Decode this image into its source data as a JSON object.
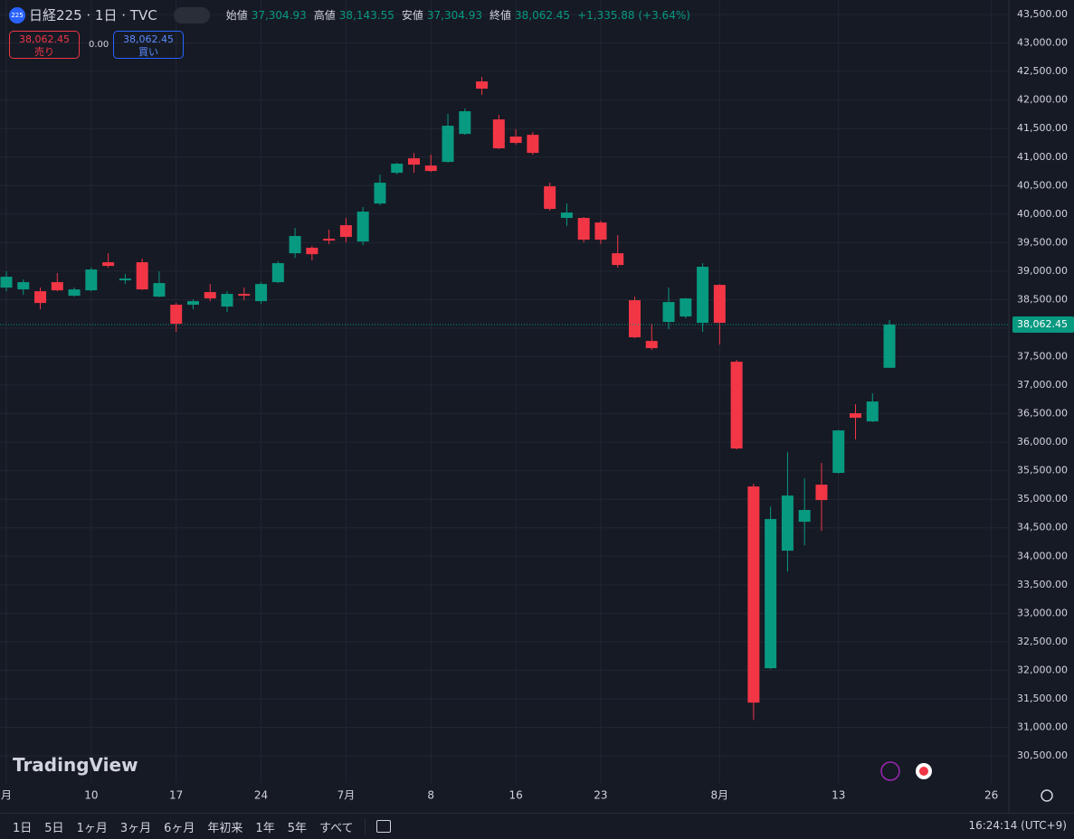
{
  "header": {
    "symbol_badge": "225",
    "symbol": "日経225 · 1日 · TVC",
    "open_label": "始値",
    "open_value": "37,304.93",
    "high_label": "高値",
    "high_value": "38,143.55",
    "low_label": "安値",
    "low_value": "37,304.93",
    "close_label": "終値",
    "close_value": "38,062.45",
    "change": "+1,335.88 (+3.64%)"
  },
  "trade": {
    "sell_price": "38,062.45",
    "sell_label": "売り",
    "spread": "0.00",
    "buy_price": "38,062.45",
    "buy_label": "買い"
  },
  "logo": "TradingView",
  "toolbar": {
    "ranges": [
      "1日",
      "5日",
      "1ヶ月",
      "3ヶ月",
      "6ヶ月",
      "年初来",
      "1年",
      "5年",
      "すべて"
    ],
    "clock": "16:24:14 (UTC+9)"
  },
  "chart_data": {
    "type": "candlestick",
    "categories": [
      "月",
      null,
      null,
      null,
      null,
      "10",
      null,
      null,
      null,
      null,
      "17",
      null,
      null,
      null,
      null,
      "24",
      null,
      null,
      null,
      null,
      "7月",
      null,
      null,
      null,
      null,
      "8",
      null,
      null,
      null,
      null,
      "16",
      null,
      null,
      null,
      null,
      "23",
      null,
      null,
      null,
      null,
      null,
      null,
      "8月",
      null,
      null,
      null,
      null,
      null,
      null,
      "13",
      null,
      null,
      null,
      null,
      null,
      null,
      null,
      null,
      "26"
    ],
    "open": [
      38712,
      38680,
      38648,
      38807,
      38569,
      38664,
      39156,
      38839,
      39156,
      38553,
      38411,
      38411,
      38633,
      38379,
      38601,
      38474,
      38807,
      39314,
      39410,
      39568,
      39806,
      39520,
      40186,
      40725,
      40979,
      40852,
      40916,
      41407,
      42327,
      41661,
      41360,
      41391,
      40488,
      39933,
      39933,
      39853,
      39314,
      38490,
      37776,
      38109,
      38205,
      38094,
      38759,
      37412,
      35224,
      32037,
      34098,
      34605,
      35256,
      35462,
      36508,
      36365,
      37304.93,
      null,
      null,
      null,
      null,
      null,
      null
    ],
    "high": [
      38997,
      38855,
      38712,
      38966,
      38712,
      39061,
      39314,
      38950,
      39219,
      38997,
      38442,
      38506,
      38775,
      38648,
      38712,
      38807,
      39172,
      39758,
      39441,
      39727,
      39933,
      40123,
      40694,
      40900,
      41074,
      41043,
      41756,
      41851,
      42406,
      41740,
      41487,
      41439,
      40551,
      40186,
      39949,
      39885,
      39631,
      38553,
      38078,
      38712,
      38530,
      39140,
      38770,
      37444,
      35271,
      34875,
      35826,
      35366,
      35636,
      36215,
      36667,
      36857,
      38143.55,
      null,
      null,
      null,
      null,
      null,
      null
    ],
    "low": [
      38648,
      38585,
      38331,
      38648,
      38553,
      38648,
      39061,
      38775,
      38670,
      38545,
      37935,
      38331,
      38474,
      38284,
      38490,
      38426,
      38791,
      39235,
      39188,
      39473,
      39505,
      39457,
      40155,
      40694,
      40725,
      40741,
      40900,
      41391,
      42089,
      41140,
      41217,
      41043,
      40060,
      39790,
      39505,
      39473,
      39061,
      37824,
      37618,
      37983,
      38173,
      37935,
      37713,
      35874,
      31133,
      32021,
      33733,
      34193,
      34447,
      35450,
      36048,
      36355,
      37304.93,
      null,
      null,
      null,
      null,
      null,
      null
    ],
    "close": [
      38902,
      38807,
      38442,
      38664,
      38680,
      39029,
      39092,
      38870,
      38680,
      38791,
      38078,
      38474,
      38522,
      38601,
      38569,
      38775,
      39140,
      39616,
      39298,
      39536,
      39600,
      40044,
      40551,
      40884,
      40868,
      40757,
      41550,
      41804,
      42200,
      41154,
      41249,
      41074,
      40091,
      40028,
      39552,
      39552,
      39108,
      37840,
      37650,
      38458,
      38522,
      39077,
      38094,
      35890,
      31434,
      34653,
      35065,
      34812,
      34986,
      36207,
      36429,
      36714,
      38062.45,
      null,
      null,
      null,
      null,
      null,
      null
    ],
    "last_price_label": "38,062.45",
    "up_color": "#089981",
    "down_color": "#f23645",
    "grid": true,
    "ylim": [
      30025,
      43755
    ],
    "yticks": [
      {
        "value": 30500,
        "label": "30,500.00"
      },
      {
        "value": 31000,
        "label": "31,000.00"
      },
      {
        "value": 31500,
        "label": "31,500.00"
      },
      {
        "value": 32000,
        "label": "32,000.00"
      },
      {
        "value": 32500,
        "label": "32,500.00"
      },
      {
        "value": 33000,
        "label": "33,000.00"
      },
      {
        "value": 33500,
        "label": "33,500.00"
      },
      {
        "value": 34000,
        "label": "34,000.00"
      },
      {
        "value": 34500,
        "label": "34,500.00"
      },
      {
        "value": 35000,
        "label": "35,000.00"
      },
      {
        "value": 35500,
        "label": "35,500.00"
      },
      {
        "value": 36000,
        "label": "36,000.00"
      },
      {
        "value": 36500,
        "label": "36,500.00"
      },
      {
        "value": 37000,
        "label": "37,000.00"
      },
      {
        "value": 37500,
        "label": "37,500.00"
      },
      {
        "value": 38000,
        "label": "38,000.00"
      },
      {
        "value": 38500,
        "label": "38,500.00"
      },
      {
        "value": 39000,
        "label": "39,000.00"
      },
      {
        "value": 39500,
        "label": "39,500.00"
      },
      {
        "value": 40000,
        "label": "40,000.00"
      },
      {
        "value": 40500,
        "label": "40,500.00"
      },
      {
        "value": 41000,
        "label": "41,000.00"
      },
      {
        "value": 41500,
        "label": "41,500.00"
      },
      {
        "value": 42000,
        "label": "42,000.00"
      },
      {
        "value": 42500,
        "label": "42,500.00"
      },
      {
        "value": 43000,
        "label": "43,000.00"
      },
      {
        "value": 43500,
        "label": "43,500.00"
      }
    ]
  }
}
